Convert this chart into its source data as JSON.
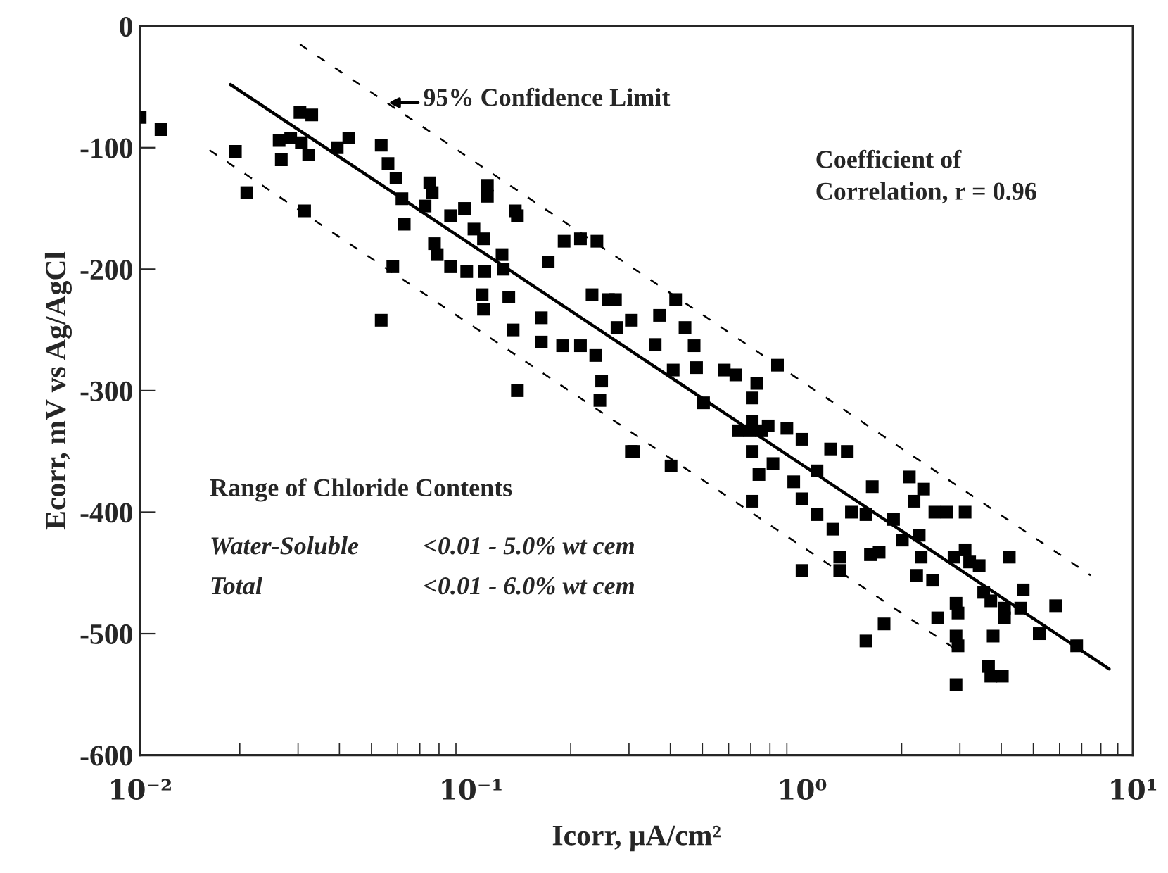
{
  "chart_data": {
    "type": "scatter",
    "xlabel": "Icorr, μA/cm²",
    "ylabel": "Ecorr, mV vs Ag/AgCl",
    "log": "x",
    "xlim": [
      0.01,
      10
    ],
    "ylim": [
      -600,
      0
    ],
    "xticks": [
      {
        "value": 0.01,
        "label": "10⁻²"
      },
      {
        "value": 0.1,
        "label": "10⁻¹"
      },
      {
        "value": 1,
        "label": "10⁰"
      },
      {
        "value": 10,
        "label": "10¹"
      }
    ],
    "yticks": [
      -600,
      -500,
      -400,
      -300,
      -200,
      -100,
      0
    ],
    "grid": false,
    "legend": false,
    "annotations": [
      "95% Confidence Limit",
      "Coefficient of\nCorrelation, r = 0.96",
      "Range of Chloride Contents",
      "Water-Soluble",
      "<0.01 - 5.0% wt cem",
      "Total",
      "<0.01 - 6.0% wt cem"
    ],
    "series": [
      {
        "color": "#000000",
        "marker": "square",
        "x": [
          0.01,
          0.01156,
          0.0194,
          0.021,
          0.0267,
          0.0263,
          0.0285,
          0.0304,
          0.033,
          0.0307,
          0.0323,
          0.0314,
          0.0394,
          0.0427,
          0.0535,
          0.0535,
          0.0561,
          0.0593,
          0.0618,
          0.0628,
          0.058,
          0.0726,
          0.075,
          0.0763,
          0.0775,
          0.079,
          0.0867,
          0.0867,
          0.0955,
          0.097,
          0.102,
          0.109,
          0.11,
          0.112,
          0.108,
          0.109,
          0.112,
          0.124,
          0.125,
          0.13,
          0.136,
          0.138,
          0.134,
          0.138,
          0.163,
          0.163,
          0.171,
          0.191,
          0.189,
          0.214,
          0.214,
          0.232,
          0.24,
          0.238,
          0.248,
          0.245,
          0.26,
          0.276,
          0.273,
          0.305,
          0.371,
          0.415,
          0.443,
          0.36,
          0.408,
          0.472,
          0.48,
          0.504,
          0.582,
          0.631,
          0.707,
          0.73,
          0.843,
          0.641,
          0.707,
          0.755,
          0.79,
          0.9,
          1.0,
          1.22,
          1.37,
          0.707,
          0.31,
          0.305,
          0.402,
          0.695,
          0.741,
          0.707,
          0.817,
          0.944,
          1.0,
          1.11,
          1.24,
          1.11,
          1.0,
          1.3,
          1.3,
          1.41,
          1.56,
          1.63,
          1.61,
          1.71,
          1.56,
          1.77,
          1.89,
          2.01,
          2.11,
          2.18,
          2.33,
          2.26,
          2.29,
          2.22,
          2.48,
          2.52,
          2.74,
          3.11,
          2.57,
          2.92,
          2.96,
          2.92,
          2.96,
          2.92,
          2.88,
          3.11,
          3.21,
          3.43,
          3.54,
          3.72,
          3.78,
          4.09,
          4.09,
          4.23,
          4.58,
          4.66,
          3.66,
          3.72,
          4.03,
          5.21,
          5.84,
          6.76
        ],
        "values": [
          -75,
          -85,
          -103,
          -137,
          -110,
          -94,
          -92,
          -71,
          -73,
          -96,
          -106,
          -152,
          -100,
          -92,
          -98,
          -242,
          -113,
          -125,
          -142,
          -163,
          -198,
          -148,
          -129,
          -137,
          -179,
          -188,
          -198,
          -156,
          -150,
          -202,
          -167,
          -175,
          -202,
          -131,
          -221,
          -233,
          -140,
          -188,
          -200,
          -223,
          -152,
          -300,
          -250,
          -156,
          -240,
          -260,
          -194,
          -177,
          -263,
          -175,
          -263,
          -221,
          -177,
          -271,
          -292,
          -308,
          -225,
          -248,
          -225,
          -242,
          -238,
          -225,
          -248,
          -262,
          -283,
          -263,
          -281,
          -310,
          -283,
          -287,
          -306,
          -294,
          -279,
          -333,
          -325,
          -333,
          -329,
          -331,
          -340,
          -348,
          -350,
          -350,
          -350,
          -350,
          -362,
          -333,
          -369,
          -391,
          -360,
          -375,
          -389,
          -402,
          -414,
          -366,
          -448,
          -437,
          -448,
          -400,
          -402,
          -379,
          -435,
          -433,
          -506,
          -492,
          -406,
          -423,
          -371,
          -391,
          -381,
          -419,
          -437,
          -452,
          -456,
          -400,
          -400,
          -400,
          -487,
          -475,
          -483,
          -502,
          -510,
          -542,
          -437,
          -431,
          -441,
          -444,
          -466,
          -473,
          -502,
          -479,
          -487,
          -437,
          -479,
          -464,
          -527,
          -535,
          -535,
          -500,
          -477,
          -510
        ]
      },
      {
        "type": "line",
        "color": "#000000",
        "line_style": "solid",
        "marker": "none",
        "x": [
          0.01875,
          8.47
        ],
        "values": [
          -48,
          -529
        ]
      },
      {
        "type": "line",
        "color": "#000000",
        "line_style": "dashed",
        "marker": "none",
        "x": [
          0.0304,
          7.45
        ],
        "values": [
          -15,
          -452
        ]
      },
      {
        "type": "line",
        "color": "#000000",
        "line_style": "dashed",
        "marker": "none",
        "x": [
          0.0162,
          2.92
        ],
        "values": [
          -102,
          -513
        ]
      }
    ]
  }
}
